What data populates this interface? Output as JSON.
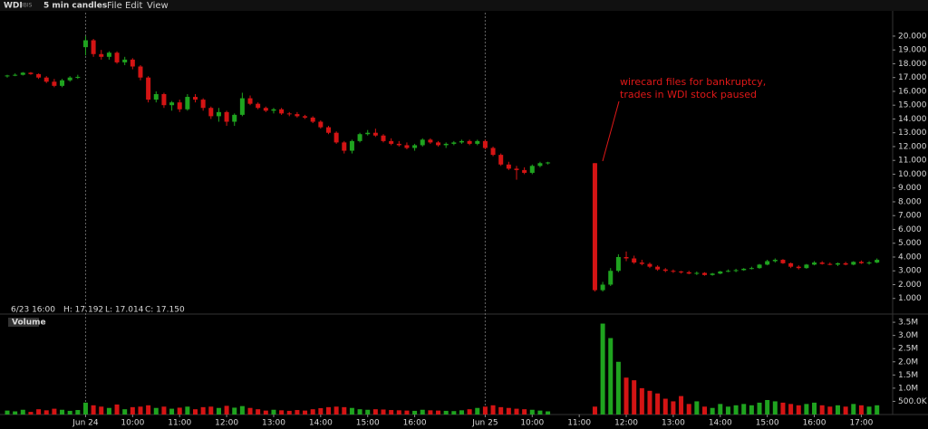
{
  "toolbar": {
    "symbol": "WDI",
    "exchange": "IBIS",
    "interval": "5 min candles",
    "menus": [
      "File",
      "Edit",
      "View"
    ]
  },
  "chart_data": {
    "type": "candlestick",
    "info": {
      "time": "6/23 16:00",
      "high": "H: 17.192",
      "low": "L: 17.014",
      "close": "C: 17.150"
    },
    "volume_label": "Volume",
    "annotation": [
      "wirecard files for bankruptcy,",
      "trades in WDI stock paused"
    ],
    "up_color": "#1fa31f",
    "down_color": "#d41414",
    "annotation_color": "#e01818",
    "xlim": [
      0,
      226
    ],
    "xticks": [
      {
        "value": 20,
        "label": "Jun 24",
        "day_break": true
      },
      {
        "value": 32,
        "label": "10:00"
      },
      {
        "value": 44,
        "label": "11:00"
      },
      {
        "value": 56,
        "label": "12:00"
      },
      {
        "value": 68,
        "label": "13:00"
      },
      {
        "value": 80,
        "label": "14:00"
      },
      {
        "value": 92,
        "label": "15:00"
      },
      {
        "value": 104,
        "label": "16:00"
      },
      {
        "value": 122,
        "label": "Jun 25",
        "day_break": true
      },
      {
        "value": 134,
        "label": "10:00"
      },
      {
        "value": 146,
        "label": "11:00"
      },
      {
        "value": 158,
        "label": "12:00"
      },
      {
        "value": 170,
        "label": "13:00"
      },
      {
        "value": 182,
        "label": "14:00"
      },
      {
        "value": 194,
        "label": "15:00"
      },
      {
        "value": 206,
        "label": "16:00"
      },
      {
        "value": 218,
        "label": "17:00"
      }
    ],
    "ylim": [
      0,
      21.7
    ],
    "yticks": [
      {
        "value": 1,
        "label": "1.000"
      },
      {
        "value": 2,
        "label": "2.000"
      },
      {
        "value": 3,
        "label": "3.000"
      },
      {
        "value": 4,
        "label": "4.000"
      },
      {
        "value": 5,
        "label": "5.000"
      },
      {
        "value": 6,
        "label": "6.000"
      },
      {
        "value": 7,
        "label": "7.000"
      },
      {
        "value": 8,
        "label": "8.000"
      },
      {
        "value": 9,
        "label": "9.000"
      },
      {
        "value": 10,
        "label": "10.000"
      },
      {
        "value": 11,
        "label": "11.000"
      },
      {
        "value": 12,
        "label": "12.000"
      },
      {
        "value": 13,
        "label": "13.000"
      },
      {
        "value": 14,
        "label": "14.000"
      },
      {
        "value": 15,
        "label": "15.000"
      },
      {
        "value": 16,
        "label": "16.000"
      },
      {
        "value": 17,
        "label": "17.000"
      },
      {
        "value": 18,
        "label": "18.000"
      },
      {
        "value": 19,
        "label": "19.000"
      },
      {
        "value": 20,
        "label": "20.000"
      }
    ],
    "volume_ylim": [
      0,
      3640000
    ],
    "volume_yticks": [
      {
        "value": 500000,
        "label": "500.0K"
      },
      {
        "value": 1000000,
        "label": "1.0M"
      },
      {
        "value": 1500000,
        "label": "1.5M"
      },
      {
        "value": 2000000,
        "label": "2.0M"
      },
      {
        "value": 2500000,
        "label": "2.5M"
      },
      {
        "value": 3000000,
        "label": "3.0M"
      },
      {
        "value": 3500000,
        "label": "3.5M"
      }
    ],
    "candles": [
      {
        "x": 0,
        "open": 17.1,
        "high": 17.2,
        "low": 17.0,
        "close": 17.15,
        "volume": 150000
      },
      {
        "x": 2,
        "open": 17.15,
        "high": 17.3,
        "low": 17.1,
        "close": 17.2,
        "volume": 120000
      },
      {
        "x": 4,
        "open": 17.2,
        "high": 17.4,
        "low": 17.15,
        "close": 17.35,
        "volume": 180000
      },
      {
        "x": 6,
        "open": 17.35,
        "high": 17.4,
        "low": 17.2,
        "close": 17.25,
        "volume": 100000
      },
      {
        "x": 8,
        "open": 17.25,
        "high": 17.3,
        "low": 16.9,
        "close": 17.0,
        "volume": 200000
      },
      {
        "x": 10,
        "open": 17.0,
        "high": 17.1,
        "low": 16.6,
        "close": 16.7,
        "volume": 160000
      },
      {
        "x": 12,
        "open": 16.7,
        "high": 16.9,
        "low": 16.3,
        "close": 16.4,
        "volume": 220000
      },
      {
        "x": 14,
        "open": 16.4,
        "high": 16.9,
        "low": 16.3,
        "close": 16.8,
        "volume": 180000
      },
      {
        "x": 16,
        "open": 16.8,
        "high": 17.1,
        "low": 16.7,
        "close": 17.0,
        "volume": 140000
      },
      {
        "x": 18,
        "open": 17.0,
        "high": 17.2,
        "low": 16.9,
        "close": 17.05,
        "volume": 170000
      },
      {
        "x": 20,
        "open": 19.2,
        "high": 20.0,
        "low": 18.6,
        "close": 19.7,
        "volume": 450000
      },
      {
        "x": 22,
        "open": 19.7,
        "high": 19.8,
        "low": 18.5,
        "close": 18.7,
        "volume": 350000
      },
      {
        "x": 24,
        "open": 18.7,
        "high": 19.0,
        "low": 18.3,
        "close": 18.5,
        "volume": 300000
      },
      {
        "x": 26,
        "open": 18.5,
        "high": 18.9,
        "low": 18.3,
        "close": 18.8,
        "volume": 250000
      },
      {
        "x": 28,
        "open": 18.8,
        "high": 18.9,
        "low": 18.0,
        "close": 18.1,
        "volume": 380000
      },
      {
        "x": 30,
        "open": 18.1,
        "high": 18.5,
        "low": 17.9,
        "close": 18.3,
        "volume": 200000
      },
      {
        "x": 32,
        "open": 18.3,
        "high": 18.4,
        "low": 17.6,
        "close": 17.8,
        "volume": 280000
      },
      {
        "x": 34,
        "open": 17.8,
        "high": 17.9,
        "low": 16.8,
        "close": 17.0,
        "volume": 300000
      },
      {
        "x": 36,
        "open": 17.0,
        "high": 17.1,
        "low": 15.2,
        "close": 15.4,
        "volume": 350000
      },
      {
        "x": 38,
        "open": 15.4,
        "high": 16.0,
        "low": 15.2,
        "close": 15.8,
        "volume": 250000
      },
      {
        "x": 40,
        "open": 15.8,
        "high": 15.9,
        "low": 14.8,
        "close": 15.0,
        "volume": 300000
      },
      {
        "x": 42,
        "open": 15.0,
        "high": 15.3,
        "low": 14.6,
        "close": 15.2,
        "volume": 220000
      },
      {
        "x": 44,
        "open": 15.2,
        "high": 15.4,
        "low": 14.5,
        "close": 14.7,
        "volume": 260000
      },
      {
        "x": 46,
        "open": 14.7,
        "high": 15.8,
        "low": 14.6,
        "close": 15.6,
        "volume": 300000
      },
      {
        "x": 48,
        "open": 15.6,
        "high": 15.8,
        "low": 15.2,
        "close": 15.4,
        "volume": 200000
      },
      {
        "x": 50,
        "open": 15.4,
        "high": 15.5,
        "low": 14.6,
        "close": 14.8,
        "volume": 280000
      },
      {
        "x": 52,
        "open": 14.8,
        "high": 14.9,
        "low": 14.0,
        "close": 14.2,
        "volume": 300000
      },
      {
        "x": 54,
        "open": 14.2,
        "high": 14.8,
        "low": 13.8,
        "close": 14.5,
        "volume": 250000
      },
      {
        "x": 56,
        "open": 14.5,
        "high": 14.6,
        "low": 13.5,
        "close": 13.8,
        "volume": 330000
      },
      {
        "x": 58,
        "open": 13.8,
        "high": 14.4,
        "low": 13.5,
        "close": 14.3,
        "volume": 260000
      },
      {
        "x": 60,
        "open": 14.3,
        "high": 15.9,
        "low": 14.2,
        "close": 15.5,
        "volume": 320000
      },
      {
        "x": 62,
        "open": 15.5,
        "high": 15.7,
        "low": 15.0,
        "close": 15.1,
        "volume": 250000
      },
      {
        "x": 64,
        "open": 15.1,
        "high": 15.2,
        "low": 14.7,
        "close": 14.8,
        "volume": 200000
      },
      {
        "x": 66,
        "open": 14.8,
        "high": 14.9,
        "low": 14.5,
        "close": 14.6,
        "volume": 150000
      },
      {
        "x": 68,
        "open": 14.6,
        "high": 14.8,
        "low": 14.4,
        "close": 14.7,
        "volume": 180000
      },
      {
        "x": 70,
        "open": 14.7,
        "high": 14.8,
        "low": 14.3,
        "close": 14.4,
        "volume": 160000
      },
      {
        "x": 72,
        "open": 14.4,
        "high": 14.5,
        "low": 14.2,
        "close": 14.35,
        "volume": 140000
      },
      {
        "x": 74,
        "open": 14.35,
        "high": 14.5,
        "low": 14.1,
        "close": 14.2,
        "volume": 170000
      },
      {
        "x": 76,
        "open": 14.2,
        "high": 14.3,
        "low": 14.0,
        "close": 14.1,
        "volume": 150000
      },
      {
        "x": 78,
        "open": 14.1,
        "high": 14.2,
        "low": 13.7,
        "close": 13.8,
        "volume": 200000
      },
      {
        "x": 80,
        "open": 13.8,
        "high": 13.9,
        "low": 13.3,
        "close": 13.4,
        "volume": 240000
      },
      {
        "x": 82,
        "open": 13.4,
        "high": 13.5,
        "low": 12.9,
        "close": 13.0,
        "volume": 280000
      },
      {
        "x": 84,
        "open": 13.0,
        "high": 13.1,
        "low": 12.2,
        "close": 12.3,
        "volume": 300000
      },
      {
        "x": 86,
        "open": 12.3,
        "high": 12.4,
        "low": 11.5,
        "close": 11.7,
        "volume": 280000
      },
      {
        "x": 88,
        "open": 11.7,
        "high": 12.5,
        "low": 11.5,
        "close": 12.4,
        "volume": 250000
      },
      {
        "x": 90,
        "open": 12.4,
        "high": 13.0,
        "low": 12.3,
        "close": 12.9,
        "volume": 200000
      },
      {
        "x": 92,
        "open": 12.9,
        "high": 13.2,
        "low": 12.8,
        "close": 13.0,
        "volume": 180000
      },
      {
        "x": 94,
        "open": 13.0,
        "high": 13.3,
        "low": 12.7,
        "close": 12.8,
        "volume": 200000
      },
      {
        "x": 96,
        "open": 12.8,
        "high": 12.9,
        "low": 12.3,
        "close": 12.4,
        "volume": 190000
      },
      {
        "x": 98,
        "open": 12.4,
        "high": 12.6,
        "low": 12.1,
        "close": 12.2,
        "volume": 170000
      },
      {
        "x": 100,
        "open": 12.2,
        "high": 12.4,
        "low": 12.0,
        "close": 12.1,
        "volume": 160000
      },
      {
        "x": 102,
        "open": 12.1,
        "high": 12.3,
        "low": 11.8,
        "close": 11.9,
        "volume": 150000
      },
      {
        "x": 104,
        "open": 11.9,
        "high": 12.2,
        "low": 11.7,
        "close": 12.1,
        "volume": 140000
      },
      {
        "x": 106,
        "open": 12.1,
        "high": 12.6,
        "low": 12.0,
        "close": 12.5,
        "volume": 180000
      },
      {
        "x": 108,
        "open": 12.5,
        "high": 12.6,
        "low": 12.2,
        "close": 12.3,
        "volume": 160000
      },
      {
        "x": 110,
        "open": 12.3,
        "high": 12.4,
        "low": 12.0,
        "close": 12.1,
        "volume": 150000
      },
      {
        "x": 112,
        "open": 12.1,
        "high": 12.3,
        "low": 11.9,
        "close": 12.2,
        "volume": 140000
      },
      {
        "x": 114,
        "open": 12.2,
        "high": 12.4,
        "low": 12.1,
        "close": 12.3,
        "volume": 130000
      },
      {
        "x": 116,
        "open": 12.3,
        "high": 12.5,
        "low": 12.2,
        "close": 12.4,
        "volume": 160000
      },
      {
        "x": 118,
        "open": 12.4,
        "high": 12.5,
        "low": 12.1,
        "close": 12.2,
        "volume": 200000
      },
      {
        "x": 120,
        "open": 12.2,
        "high": 12.5,
        "low": 12.1,
        "close": 12.4,
        "volume": 250000
      },
      {
        "x": 122,
        "open": 12.4,
        "high": 12.5,
        "low": 11.8,
        "close": 11.9,
        "volume": 300000
      },
      {
        "x": 124,
        "open": 11.9,
        "high": 12.0,
        "low": 11.3,
        "close": 11.4,
        "volume": 350000
      },
      {
        "x": 126,
        "open": 11.4,
        "high": 11.5,
        "low": 10.6,
        "close": 10.7,
        "volume": 280000
      },
      {
        "x": 128,
        "open": 10.7,
        "high": 10.9,
        "low": 10.3,
        "close": 10.4,
        "volume": 250000
      },
      {
        "x": 130,
        "open": 10.4,
        "high": 10.6,
        "low": 9.6,
        "close": 10.3,
        "volume": 220000
      },
      {
        "x": 132,
        "open": 10.3,
        "high": 10.5,
        "low": 10.0,
        "close": 10.1,
        "volume": 200000
      },
      {
        "x": 134,
        "open": 10.1,
        "high": 10.7,
        "low": 10.0,
        "close": 10.6,
        "volume": 180000
      },
      {
        "x": 136,
        "open": 10.6,
        "high": 10.9,
        "low": 10.5,
        "close": 10.8,
        "volume": 150000
      },
      {
        "x": 138,
        "open": 10.8,
        "high": 10.9,
        "low": 10.7,
        "close": 10.85,
        "volume": 120000
      },
      {
        "x": 150,
        "open": 10.8,
        "high": 10.8,
        "low": 1.5,
        "close": 1.6,
        "volume": 300000
      },
      {
        "x": 152,
        "open": 1.6,
        "high": 2.2,
        "low": 1.5,
        "close": 2.0,
        "volume": 3450000
      },
      {
        "x": 154,
        "open": 2.0,
        "high": 3.2,
        "low": 1.9,
        "close": 3.0,
        "volume": 2900000
      },
      {
        "x": 156,
        "open": 3.0,
        "high": 4.2,
        "low": 2.9,
        "close": 4.0,
        "volume": 2000000
      },
      {
        "x": 158,
        "open": 4.0,
        "high": 4.4,
        "low": 3.7,
        "close": 3.9,
        "volume": 1400000
      },
      {
        "x": 160,
        "open": 3.9,
        "high": 4.1,
        "low": 3.5,
        "close": 3.6,
        "volume": 1300000
      },
      {
        "x": 162,
        "open": 3.6,
        "high": 3.8,
        "low": 3.4,
        "close": 3.5,
        "volume": 1000000
      },
      {
        "x": 164,
        "open": 3.5,
        "high": 3.6,
        "low": 3.2,
        "close": 3.3,
        "volume": 900000
      },
      {
        "x": 166,
        "open": 3.3,
        "high": 3.4,
        "low": 3.0,
        "close": 3.1,
        "volume": 800000
      },
      {
        "x": 168,
        "open": 3.1,
        "high": 3.2,
        "low": 2.9,
        "close": 3.0,
        "volume": 600000
      },
      {
        "x": 170,
        "open": 3.0,
        "high": 3.1,
        "low": 2.85,
        "close": 2.95,
        "volume": 500000
      },
      {
        "x": 172,
        "open": 2.95,
        "high": 3.0,
        "low": 2.8,
        "close": 2.9,
        "volume": 700000
      },
      {
        "x": 174,
        "open": 2.9,
        "high": 3.0,
        "low": 2.75,
        "close": 2.8,
        "volume": 400000
      },
      {
        "x": 176,
        "open": 2.8,
        "high": 2.95,
        "low": 2.7,
        "close": 2.85,
        "volume": 500000
      },
      {
        "x": 178,
        "open": 2.85,
        "high": 2.9,
        "low": 2.65,
        "close": 2.7,
        "volume": 300000
      },
      {
        "x": 180,
        "open": 2.7,
        "high": 2.85,
        "low": 2.65,
        "close": 2.8,
        "volume": 250000
      },
      {
        "x": 182,
        "open": 2.8,
        "high": 3.0,
        "low": 2.75,
        "close": 2.95,
        "volume": 400000
      },
      {
        "x": 184,
        "open": 2.95,
        "high": 3.1,
        "low": 2.9,
        "close": 3.0,
        "volume": 300000
      },
      {
        "x": 186,
        "open": 3.0,
        "high": 3.15,
        "low": 2.9,
        "close": 3.05,
        "volume": 350000
      },
      {
        "x": 188,
        "open": 3.05,
        "high": 3.2,
        "low": 3.0,
        "close": 3.15,
        "volume": 400000
      },
      {
        "x": 190,
        "open": 3.15,
        "high": 3.3,
        "low": 3.1,
        "close": 3.2,
        "volume": 350000
      },
      {
        "x": 192,
        "open": 3.2,
        "high": 3.5,
        "low": 3.15,
        "close": 3.45,
        "volume": 450000
      },
      {
        "x": 194,
        "open": 3.45,
        "high": 3.8,
        "low": 3.4,
        "close": 3.7,
        "volume": 550000
      },
      {
        "x": 196,
        "open": 3.7,
        "high": 3.9,
        "low": 3.6,
        "close": 3.8,
        "volume": 500000
      },
      {
        "x": 198,
        "open": 3.8,
        "high": 3.85,
        "low": 3.5,
        "close": 3.55,
        "volume": 450000
      },
      {
        "x": 200,
        "open": 3.55,
        "high": 3.6,
        "low": 3.2,
        "close": 3.3,
        "volume": 400000
      },
      {
        "x": 202,
        "open": 3.3,
        "high": 3.4,
        "low": 3.1,
        "close": 3.2,
        "volume": 350000
      },
      {
        "x": 204,
        "open": 3.2,
        "high": 3.5,
        "low": 3.15,
        "close": 3.45,
        "volume": 400000
      },
      {
        "x": 206,
        "open": 3.45,
        "high": 3.7,
        "low": 3.4,
        "close": 3.6,
        "volume": 450000
      },
      {
        "x": 208,
        "open": 3.6,
        "high": 3.7,
        "low": 3.45,
        "close": 3.5,
        "volume": 350000
      },
      {
        "x": 210,
        "open": 3.5,
        "high": 3.6,
        "low": 3.4,
        "close": 3.45,
        "volume": 300000
      },
      {
        "x": 212,
        "open": 3.45,
        "high": 3.6,
        "low": 3.35,
        "close": 3.55,
        "volume": 350000
      },
      {
        "x": 214,
        "open": 3.55,
        "high": 3.65,
        "low": 3.4,
        "close": 3.45,
        "volume": 300000
      },
      {
        "x": 216,
        "open": 3.45,
        "high": 3.7,
        "low": 3.4,
        "close": 3.65,
        "volume": 400000
      },
      {
        "x": 218,
        "open": 3.65,
        "high": 3.75,
        "low": 3.5,
        "close": 3.55,
        "volume": 350000
      },
      {
        "x": 220,
        "open": 3.55,
        "high": 3.7,
        "low": 3.45,
        "close": 3.6,
        "volume": 300000
      },
      {
        "x": 222,
        "open": 3.6,
        "high": 3.9,
        "low": 3.55,
        "close": 3.8,
        "volume": 350000
      }
    ]
  }
}
